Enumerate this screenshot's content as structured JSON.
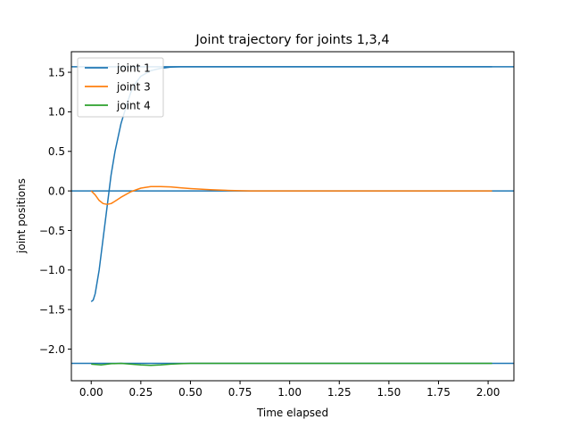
{
  "chart_data": {
    "type": "line",
    "title": "Joint trajectory for joints 1,3,4",
    "xlabel": "Time elapsed",
    "ylabel": "joint positions",
    "xlim": [
      -0.1,
      2.13
    ],
    "ylim": [
      -2.4,
      1.76
    ],
    "xticks": [
      0.0,
      0.25,
      0.5,
      0.75,
      1.0,
      1.25,
      1.5,
      1.75,
      2.0
    ],
    "xtick_labels": [
      "0.00",
      "0.25",
      "0.50",
      "0.75",
      "1.00",
      "1.25",
      "1.50",
      "1.75",
      "2.00"
    ],
    "yticks": [
      -2.0,
      -1.5,
      -1.0,
      -0.5,
      0.0,
      0.5,
      1.0,
      1.5
    ],
    "ytick_labels": [
      "−2.0",
      "−1.5",
      "−1.0",
      "−0.5",
      "0.0",
      "0.5",
      "1.0",
      "1.5"
    ],
    "grid": false,
    "legend_position": "upper-left",
    "series": [
      {
        "name": "joint 1",
        "color": "#1f77b4",
        "x": [
          0.0,
          0.01,
          0.02,
          0.04,
          0.06,
          0.08,
          0.1,
          0.12,
          0.15,
          0.18,
          0.2,
          0.22,
          0.25,
          0.3,
          0.35,
          0.4,
          0.45,
          0.5,
          0.6,
          0.8,
          1.0,
          1.5,
          2.02
        ],
        "y": [
          -1.4,
          -1.38,
          -1.3,
          -1.0,
          -0.6,
          -0.2,
          0.2,
          0.5,
          0.85,
          1.1,
          1.25,
          1.35,
          1.45,
          1.52,
          1.55,
          1.565,
          1.57,
          1.57,
          1.57,
          1.57,
          1.57,
          1.57,
          1.57
        ]
      },
      {
        "name": "joint 3",
        "color": "#ff7f0e",
        "x": [
          0.0,
          0.02,
          0.04,
          0.06,
          0.08,
          0.1,
          0.12,
          0.15,
          0.2,
          0.25,
          0.3,
          0.35,
          0.4,
          0.45,
          0.5,
          0.6,
          0.7,
          0.8,
          1.0,
          1.5,
          2.02
        ],
        "y": [
          0.0,
          -0.05,
          -0.12,
          -0.16,
          -0.17,
          -0.16,
          -0.13,
          -0.08,
          -0.01,
          0.035,
          0.055,
          0.055,
          0.05,
          0.04,
          0.03,
          0.015,
          0.005,
          0.0,
          0.0,
          0.0,
          0.0
        ]
      },
      {
        "name": "joint 4",
        "color": "#2ca02c",
        "x": [
          0.0,
          0.05,
          0.1,
          0.15,
          0.2,
          0.25,
          0.3,
          0.35,
          0.4,
          0.45,
          0.5,
          0.6,
          0.8,
          1.0,
          1.5,
          2.02
        ],
        "y": [
          -2.19,
          -2.2,
          -2.185,
          -2.18,
          -2.19,
          -2.2,
          -2.205,
          -2.2,
          -2.19,
          -2.185,
          -2.18,
          -2.18,
          -2.18,
          -2.18,
          -2.18,
          -2.18
        ]
      }
    ],
    "reference_lines": [
      {
        "y": 1.57,
        "color": "#1f77b4"
      },
      {
        "y": 0.0,
        "color": "#1f77b4"
      },
      {
        "y": -2.18,
        "color": "#1f77b4"
      }
    ]
  }
}
